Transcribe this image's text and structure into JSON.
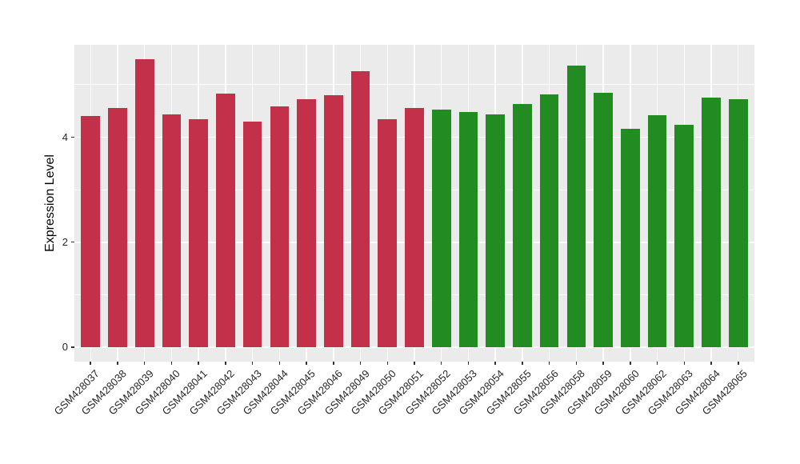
{
  "chart_data": {
    "type": "bar",
    "title": "",
    "xlabel": "",
    "ylabel": "Expression Level",
    "ytick_labels": [
      "0",
      "2",
      "4"
    ],
    "ytick_values": [
      0,
      2,
      4
    ],
    "minor_tick_values": [
      1,
      3,
      5
    ],
    "ylim": [
      -0.275,
      5.76
    ],
    "grid": true,
    "legend": false,
    "x_label_angle_deg": 45,
    "bars": [
      {
        "label": "GSM428037",
        "value": 4.4,
        "group": "red"
      },
      {
        "label": "GSM428038",
        "value": 4.56,
        "group": "red"
      },
      {
        "label": "GSM428039",
        "value": 5.48,
        "group": "red"
      },
      {
        "label": "GSM428040",
        "value": 4.44,
        "group": "red"
      },
      {
        "label": "GSM428041",
        "value": 4.34,
        "group": "red"
      },
      {
        "label": "GSM428042",
        "value": 4.83,
        "group": "red"
      },
      {
        "label": "GSM428043",
        "value": 4.29,
        "group": "red"
      },
      {
        "label": "GSM428044",
        "value": 4.58,
        "group": "red"
      },
      {
        "label": "GSM428045",
        "value": 4.73,
        "group": "red"
      },
      {
        "label": "GSM428046",
        "value": 4.8,
        "group": "red"
      },
      {
        "label": "GSM428049",
        "value": 5.25,
        "group": "red"
      },
      {
        "label": "GSM428050",
        "value": 4.34,
        "group": "red"
      },
      {
        "label": "GSM428051",
        "value": 4.56,
        "group": "red"
      },
      {
        "label": "GSM428052",
        "value": 4.52,
        "group": "green"
      },
      {
        "label": "GSM428053",
        "value": 4.48,
        "group": "green"
      },
      {
        "label": "GSM428054",
        "value": 4.43,
        "group": "green"
      },
      {
        "label": "GSM428055",
        "value": 4.63,
        "group": "green"
      },
      {
        "label": "GSM428056",
        "value": 4.82,
        "group": "green"
      },
      {
        "label": "GSM428058",
        "value": 5.36,
        "group": "green"
      },
      {
        "label": "GSM428059",
        "value": 4.85,
        "group": "green"
      },
      {
        "label": "GSM428060",
        "value": 4.16,
        "group": "green"
      },
      {
        "label": "GSM428062",
        "value": 4.42,
        "group": "green"
      },
      {
        "label": "GSM428063",
        "value": 4.24,
        "group": "green"
      },
      {
        "label": "GSM428064",
        "value": 4.76,
        "group": "green"
      },
      {
        "label": "GSM428065",
        "value": 4.73,
        "group": "green"
      }
    ],
    "group_colors": {
      "red": "#C2304A",
      "green": "#228B22"
    },
    "panel_bg": "#EBEBEB",
    "grid_color": "#FFFFFF",
    "tick_color": "#333333",
    "axis_text_color": "#262626",
    "axis_title_color": "#000000",
    "background_color": "#FFFFFF"
  }
}
